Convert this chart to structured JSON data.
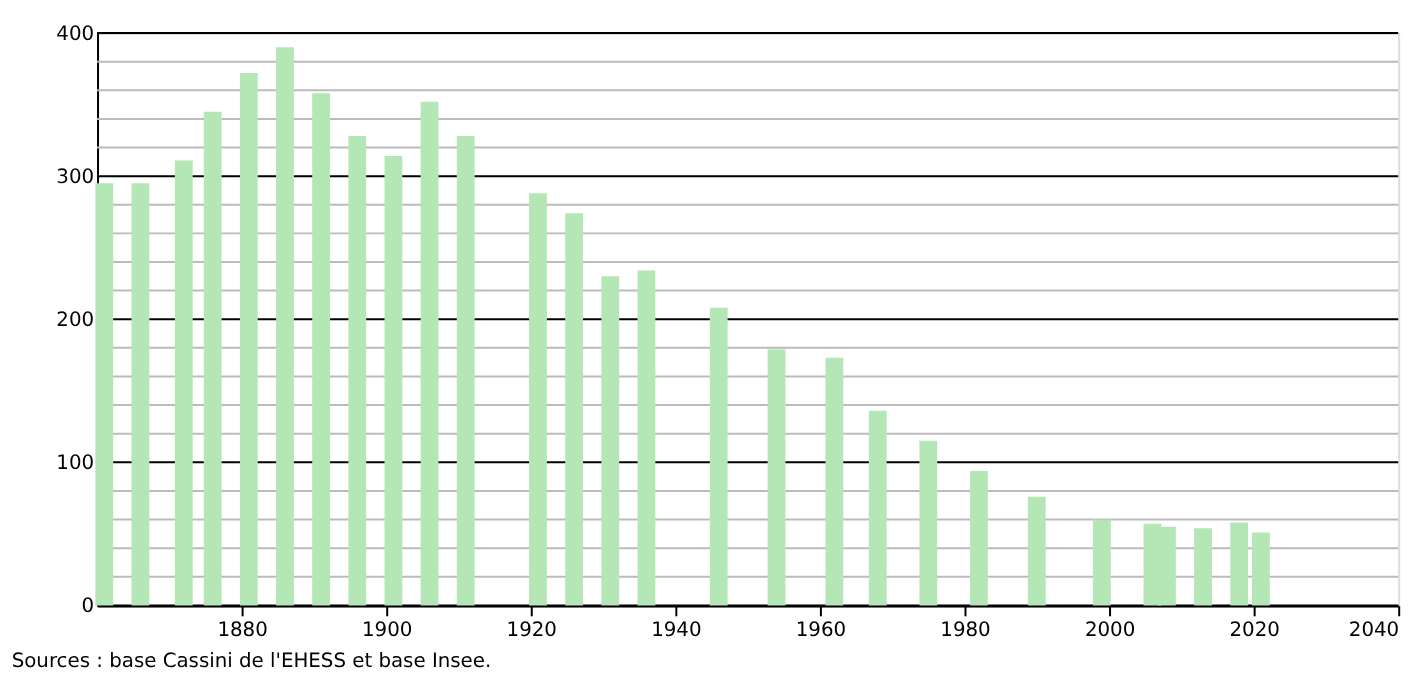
{
  "chart_data": {
    "type": "bar",
    "color": "#b5e6b5",
    "x": [
      1861,
      1866,
      1872,
      1876,
      1881,
      1886,
      1891,
      1896,
      1901,
      1906,
      1911,
      1921,
      1926,
      1931,
      1936,
      1946,
      1954,
      1962,
      1968,
      1975,
      1982,
      1990,
      1999,
      2006,
      2008,
      2013,
      2018,
      2021
    ],
    "values": [
      295,
      295,
      311,
      345,
      372,
      390,
      358,
      328,
      314,
      352,
      328,
      288,
      274,
      230,
      234,
      208,
      179,
      173,
      136,
      115,
      94,
      76,
      60,
      57,
      55,
      54,
      58,
      51
    ],
    "xlim": [
      1860,
      2040
    ],
    "xticks": [
      1880,
      1900,
      1920,
      1940,
      1960,
      1980,
      2000,
      2020,
      2040
    ],
    "ylim": [
      0,
      400
    ],
    "yticks": [
      0,
      {
        "value": 20,
        "label": null
      },
      {
        "value": 40,
        "label": null
      },
      {
        "value": 60,
        "label": null
      },
      {
        "value": 80,
        "label": null
      },
      100,
      {
        "value": 120,
        "label": null
      },
      {
        "value": 140,
        "label": null
      },
      {
        "value": 160,
        "label": null
      },
      {
        "value": 180,
        "label": null
      },
      200,
      {
        "value": 220,
        "label": null
      },
      {
        "value": 240,
        "label": null
      },
      {
        "value": 260,
        "label": null
      },
      {
        "value": 280,
        "label": null
      },
      300,
      {
        "value": 320,
        "label": null
      },
      {
        "value": 340,
        "label": null
      },
      {
        "value": 360,
        "label": null
      },
      {
        "value": 380,
        "label": null
      },
      400
    ],
    "grid": "y",
    "annotations": [
      "Sources : base Cassini de l'EHESS et base Insee."
    ]
  }
}
